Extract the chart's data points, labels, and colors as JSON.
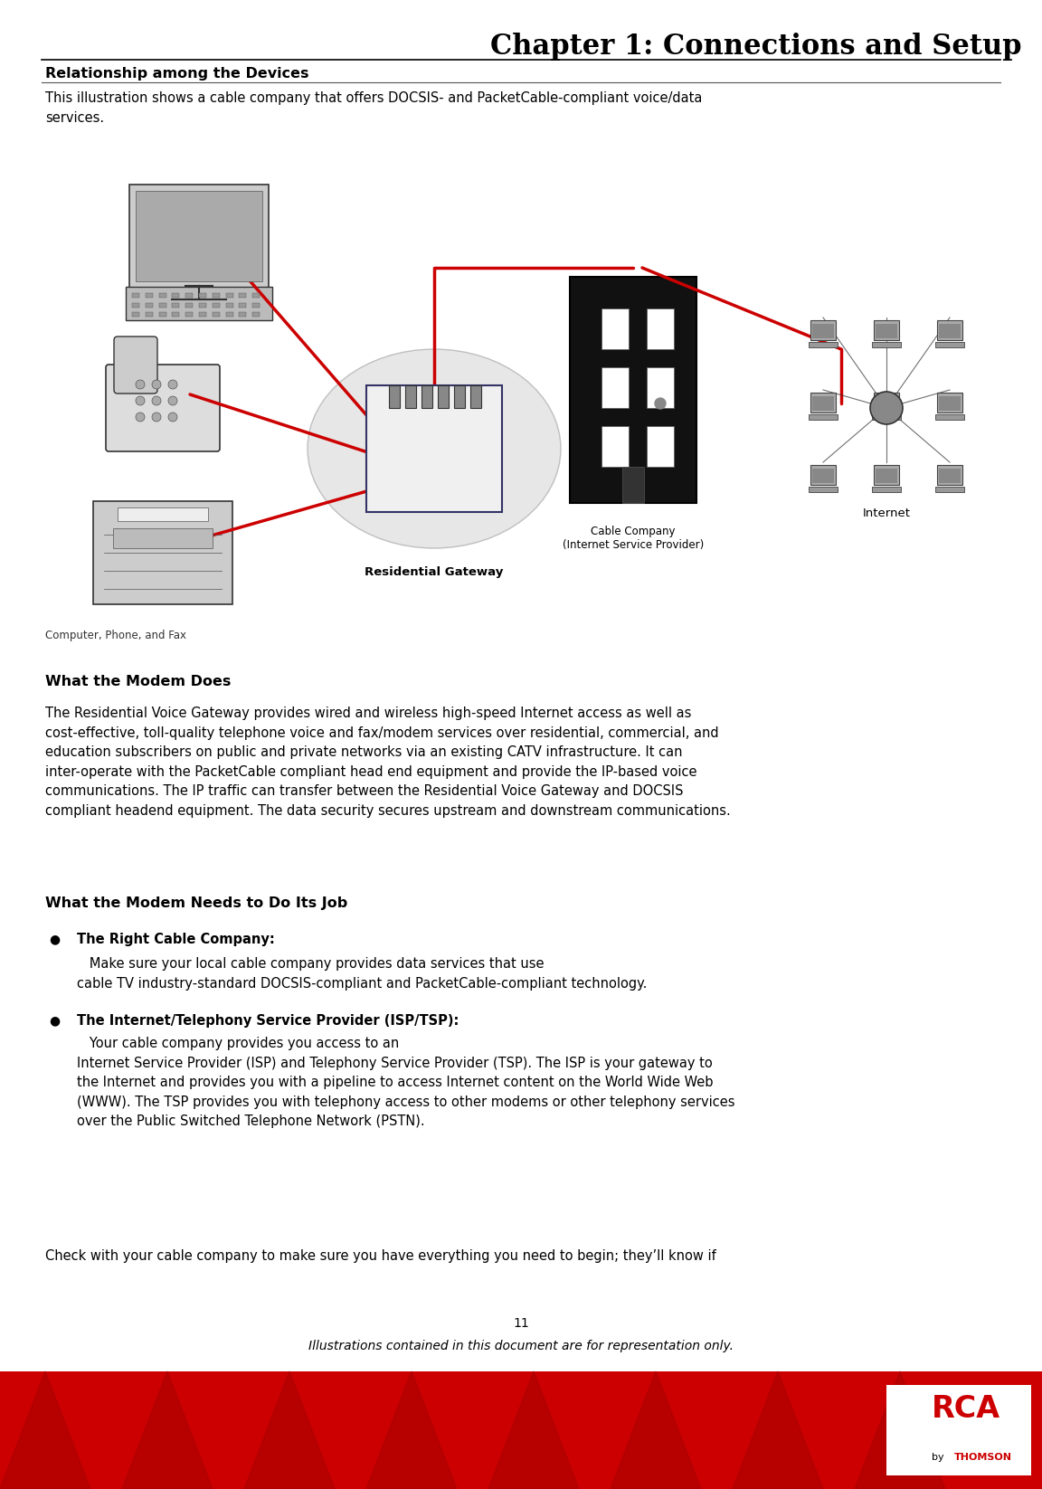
{
  "title": "Chapter 1: Connections and Setup",
  "section_heading": "Relationship among the Devices",
  "intro_text": "This illustration shows a cable company that offers DOCSIS- and PacketCable-compliant voice/data\nservices.",
  "section2_heading": "What the Modem Does",
  "section2_text": "The Residential Voice Gateway provides wired and wireless high-speed Internet access as well as\ncost-effective, toll-quality telephone voice and fax/modem services over residential, commercial, and\neducation subscribers on public and private networks via an existing CATV infrastructure. It can\ninter-operate with the PacketCable compliant head end equipment and provide the IP-based voice\ncommunications. The IP traffic can transfer between the Residential Voice Gateway and DOCSIS\ncompliant headend equipment. The data security secures upstream and downstream communications.",
  "section3_heading": "What the Modem Needs to Do Its Job",
  "bullet1_label": "The Right Cable Company:",
  "bullet1_text": "   Make sure your local cable company provides data services that use\ncable TV industry-standard DOCSIS-compliant and PacketCable-compliant technology.",
  "bullet2_label": "The Internet/Telephony Service Provider (ISP/TSP):",
  "bullet2_text": "   Your cable company provides you access to an\nInternet Service Provider (ISP) and Telephony Service Provider (TSP). The ISP is your gateway to\nthe Internet and provides you with a pipeline to access Internet content on the World Wide Web\n(WWW). The TSP provides you with telephony access to other modems or other telephony services\nover the Public Switched Telephone Network (PSTN).",
  "footer_text": "Check with your cable company to make sure you have everything you need to begin; they’ll know if",
  "page_number": "11",
  "footer_italic": "Illustrations contained in this document are for representation only.",
  "bg_color": "#ffffff",
  "text_color": "#000000",
  "heading_color": "#000000",
  "red_bar_color": "#cc0000",
  "line_color": "#000000",
  "title_font_size": 22,
  "section_font_size": 11,
  "body_font_size": 10.5,
  "diagram_label1": "Residential Gateway",
  "diagram_label2": "Cable Company\n(Internet Service Provider)",
  "diagram_label3": "Internet",
  "diagram_label4": "Computer, Phone, and Fax"
}
